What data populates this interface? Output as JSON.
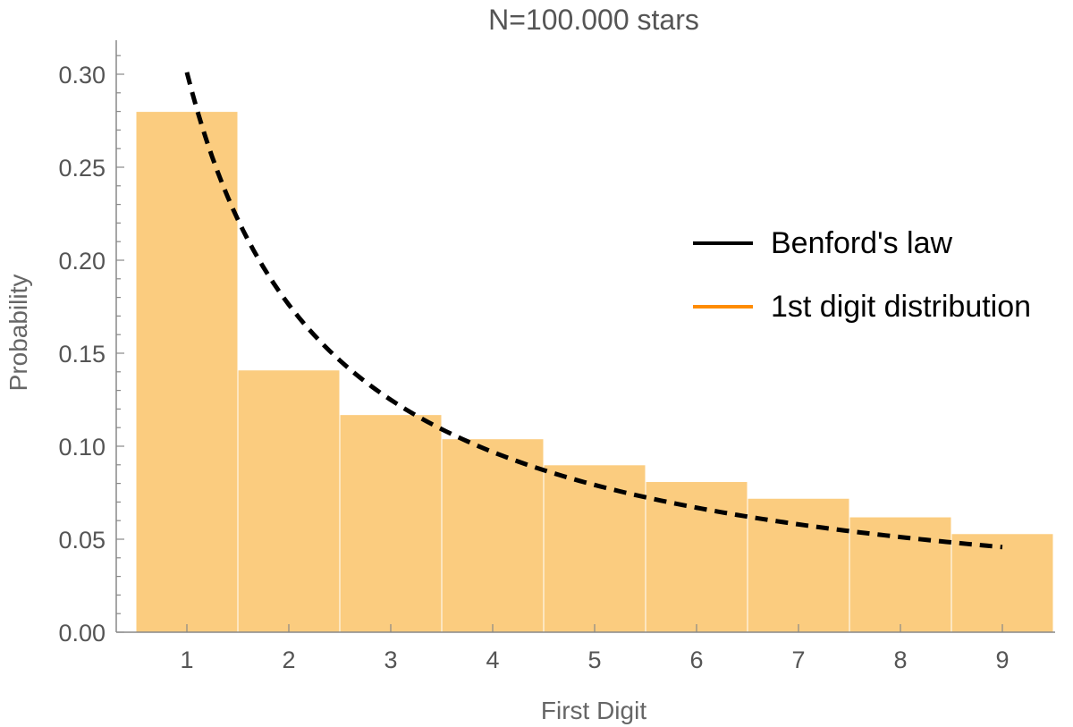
{
  "chart_data": {
    "type": "bar",
    "title": "N=100.000 stars",
    "xlabel": "First Digit",
    "ylabel": "Probability",
    "categories": [
      "1",
      "2",
      "3",
      "4",
      "5",
      "6",
      "7",
      "8",
      "9"
    ],
    "series": [
      {
        "name": "1st digit distribution",
        "type": "bar",
        "color": "#FBCC7F",
        "values": [
          0.28,
          0.141,
          0.117,
          0.104,
          0.09,
          0.081,
          0.072,
          0.062,
          0.053
        ]
      },
      {
        "name": "Benford's law",
        "type": "line",
        "style": "dashed",
        "color": "#000000",
        "x": [
          1,
          2,
          3,
          4,
          5,
          6,
          7,
          8,
          9
        ],
        "values": [
          0.301,
          0.176,
          0.125,
          0.097,
          0.079,
          0.067,
          0.058,
          0.051,
          0.046
        ]
      }
    ],
    "ylim": [
      0,
      0.31
    ],
    "yticks": [
      "0.00",
      "0.05",
      "0.10",
      "0.15",
      "0.20",
      "0.25",
      "0.30"
    ],
    "legend": {
      "position": "right",
      "entries": [
        {
          "label": "Benford's law",
          "color": "#000000"
        },
        {
          "label": "1st digit distribution",
          "color": "#FF8C00"
        }
      ]
    },
    "grid": false
  }
}
